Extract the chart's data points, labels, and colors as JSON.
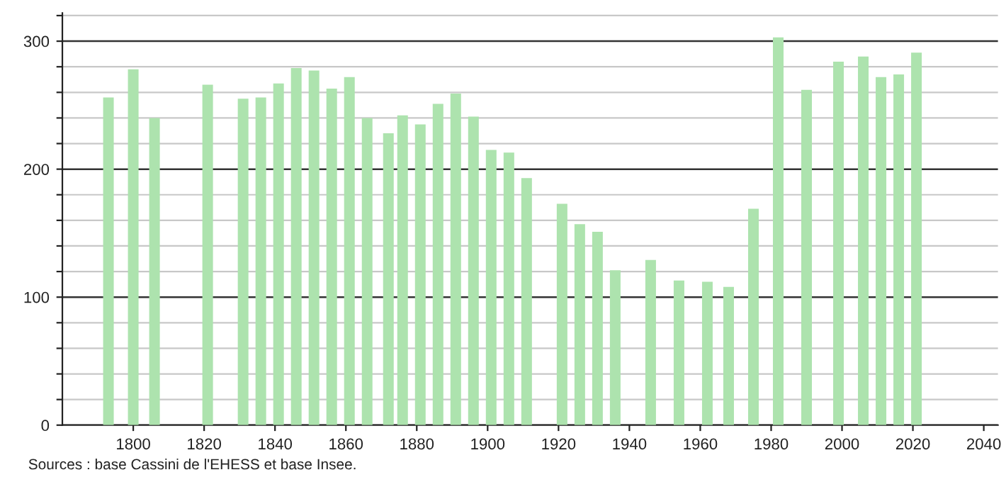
{
  "chart_data": {
    "type": "bar",
    "x": [
      1793,
      1800,
      1806,
      1821,
      1831,
      1836,
      1841,
      1846,
      1851,
      1856,
      1861,
      1866,
      1872,
      1876,
      1881,
      1886,
      1891,
      1896,
      1901,
      1906,
      1911,
      1921,
      1926,
      1931,
      1936,
      1946,
      1954,
      1962,
      1968,
      1975,
      1982,
      1990,
      1999,
      2006,
      2011,
      2016,
      2021
    ],
    "values": [
      256,
      278,
      240,
      266,
      255,
      256,
      267,
      279,
      277,
      263,
      272,
      240,
      228,
      242,
      235,
      251,
      259,
      241,
      215,
      213,
      193,
      173,
      157,
      151,
      121,
      129,
      113,
      112,
      108,
      169,
      303,
      262,
      284,
      288,
      272,
      274,
      291
    ],
    "color": "#ade3ae",
    "xlim": [
      1780,
      2044
    ],
    "xticks": [
      1800,
      1820,
      1840,
      1860,
      1880,
      1900,
      1920,
      1940,
      1960,
      1980,
      2000,
      2020,
      2040
    ],
    "ylim": [
      0,
      322
    ],
    "yticks": [
      0,
      {
        "value": 20,
        "label": null
      },
      {
        "value": 40,
        "label": null
      },
      {
        "value": 60,
        "label": null
      },
      {
        "value": 80,
        "label": null
      },
      100,
      {
        "value": 120,
        "label": null
      },
      {
        "value": 140,
        "label": null
      },
      {
        "value": 160,
        "label": null
      },
      {
        "value": 180,
        "label": null
      },
      200,
      {
        "value": 220,
        "label": null
      },
      {
        "value": 240,
        "label": null
      },
      {
        "value": 260,
        "label": null
      },
      {
        "value": 280,
        "label": null
      },
      300,
      {
        "value": 320,
        "label": null
      }
    ],
    "grid": "y",
    "annotations": [
      "Sources : base Cassini de l'EHESS et base Insee."
    ]
  }
}
